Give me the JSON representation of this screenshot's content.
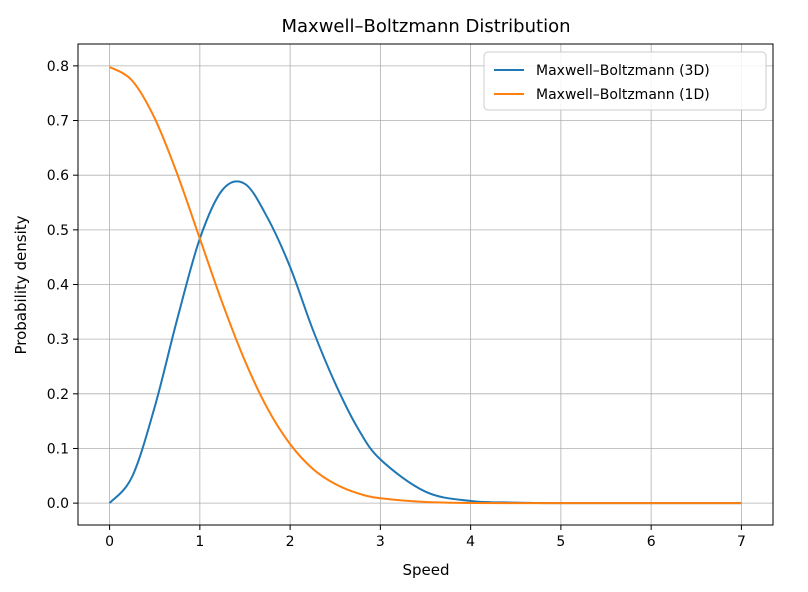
{
  "chart_data": {
    "type": "line",
    "title": "Maxwell–Boltzmann Distribution",
    "xlabel": "Speed",
    "ylabel": "Probability density",
    "xlim": [
      -0.35,
      7.35
    ],
    "ylim": [
      -0.04,
      0.84
    ],
    "xticks": [
      0,
      1,
      2,
      3,
      4,
      5,
      6,
      7
    ],
    "yticks": [
      0.0,
      0.1,
      0.2,
      0.3,
      0.4,
      0.5,
      0.6,
      0.7,
      0.8
    ],
    "xtick_labels": [
      "0",
      "1",
      "2",
      "3",
      "4",
      "5",
      "6",
      "7"
    ],
    "ytick_labels": [
      "0.0",
      "0.1",
      "0.2",
      "0.3",
      "0.4",
      "0.5",
      "0.6",
      "0.7",
      "0.8"
    ],
    "grid": true,
    "legend_position": "top-right",
    "x": [
      0,
      0.25,
      0.5,
      0.75,
      1.0,
      1.25,
      1.5,
      1.75,
      2.0,
      2.25,
      2.5,
      2.75,
      3.0,
      3.5,
      4.0,
      4.5,
      5.0,
      5.5,
      6.0,
      6.5,
      7.0
    ],
    "series": [
      {
        "name": "Maxwell–Boltzmann (3D)",
        "color": "#1f77b4",
        "values": [
          0.0,
          0.0485,
          0.176,
          0.337,
          0.484,
          0.573,
          0.584,
          0.522,
          0.432,
          0.318,
          0.219,
          0.137,
          0.08,
          0.021,
          0.004,
          0.001,
          0.0,
          0.0,
          0.0,
          0.0,
          0.0
        ]
      },
      {
        "name": "Maxwell–Boltzmann (1D)",
        "color": "#ff7f0e",
        "values": [
          0.798,
          0.773,
          0.704,
          0.602,
          0.484,
          0.366,
          0.26,
          0.173,
          0.108,
          0.063,
          0.035,
          0.018,
          0.009,
          0.002,
          0.0003,
          0.0,
          0.0,
          0.0,
          0.0,
          0.0,
          0.0
        ]
      }
    ]
  }
}
